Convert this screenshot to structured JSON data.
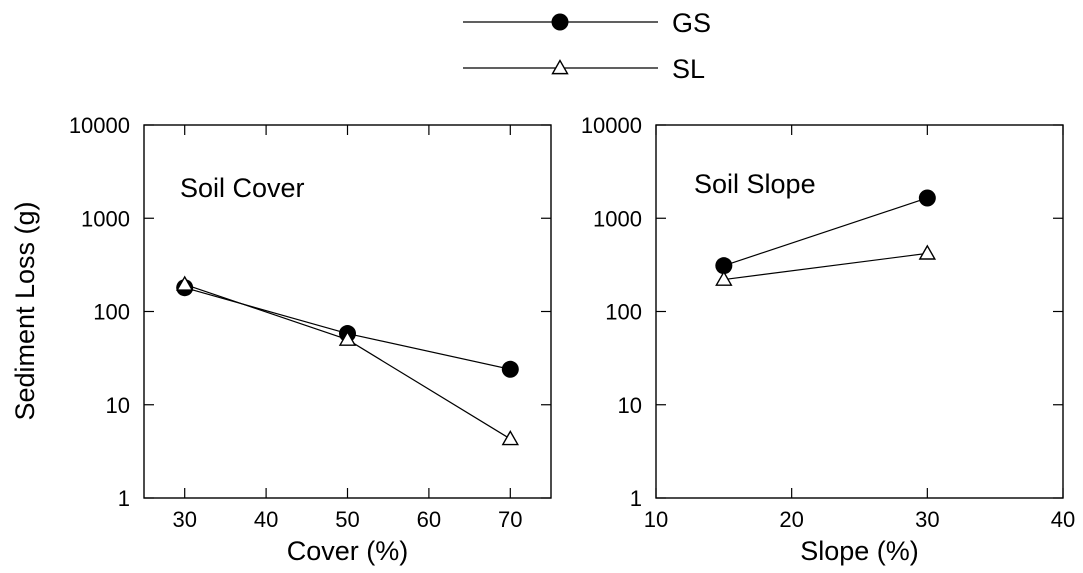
{
  "legend": [
    {
      "series": "GS",
      "marker": "filled-circle"
    },
    {
      "series": "SL",
      "marker": "open-triangle"
    }
  ],
  "ylabel": "Sediment Loss (g)",
  "chart_data": [
    {
      "type": "line",
      "annotation": "Soil Cover",
      "xlabel": "Cover (%)",
      "ylabel": "Sediment Loss (g)",
      "xlim": [
        25,
        75
      ],
      "ylim": [
        1,
        10000
      ],
      "yscale": "log",
      "xticks": [
        30,
        40,
        50,
        60,
        70
      ],
      "yticks": [
        1,
        10,
        100,
        1000,
        10000
      ],
      "ytick_labels": [
        "1",
        "10",
        "100",
        "1000",
        "10000"
      ],
      "grid": false,
      "series": [
        {
          "name": "GS",
          "marker": "filled-circle",
          "x": [
            30,
            50,
            70
          ],
          "y": [
            180,
            58,
            24
          ]
        },
        {
          "name": "SL",
          "marker": "open-triangle",
          "x": [
            30,
            50,
            70
          ],
          "y": [
            195,
            50,
            4.3
          ]
        }
      ]
    },
    {
      "type": "line",
      "annotation": "Soil Slope",
      "xlabel": "Slope (%)",
      "ylabel": "",
      "xlim": [
        10,
        40
      ],
      "ylim": [
        1,
        10000
      ],
      "yscale": "log",
      "xticks": [
        10,
        20,
        30,
        40
      ],
      "yticks": [
        1,
        10,
        100,
        1000,
        10000
      ],
      "ytick_labels": [
        "1",
        "10",
        "100",
        "1000",
        "10000"
      ],
      "grid": false,
      "series": [
        {
          "name": "GS",
          "marker": "filled-circle",
          "x": [
            15,
            30
          ],
          "y": [
            310,
            1650
          ]
        },
        {
          "name": "SL",
          "marker": "open-triangle",
          "x": [
            15,
            30
          ],
          "y": [
            220,
            420
          ]
        }
      ]
    }
  ]
}
